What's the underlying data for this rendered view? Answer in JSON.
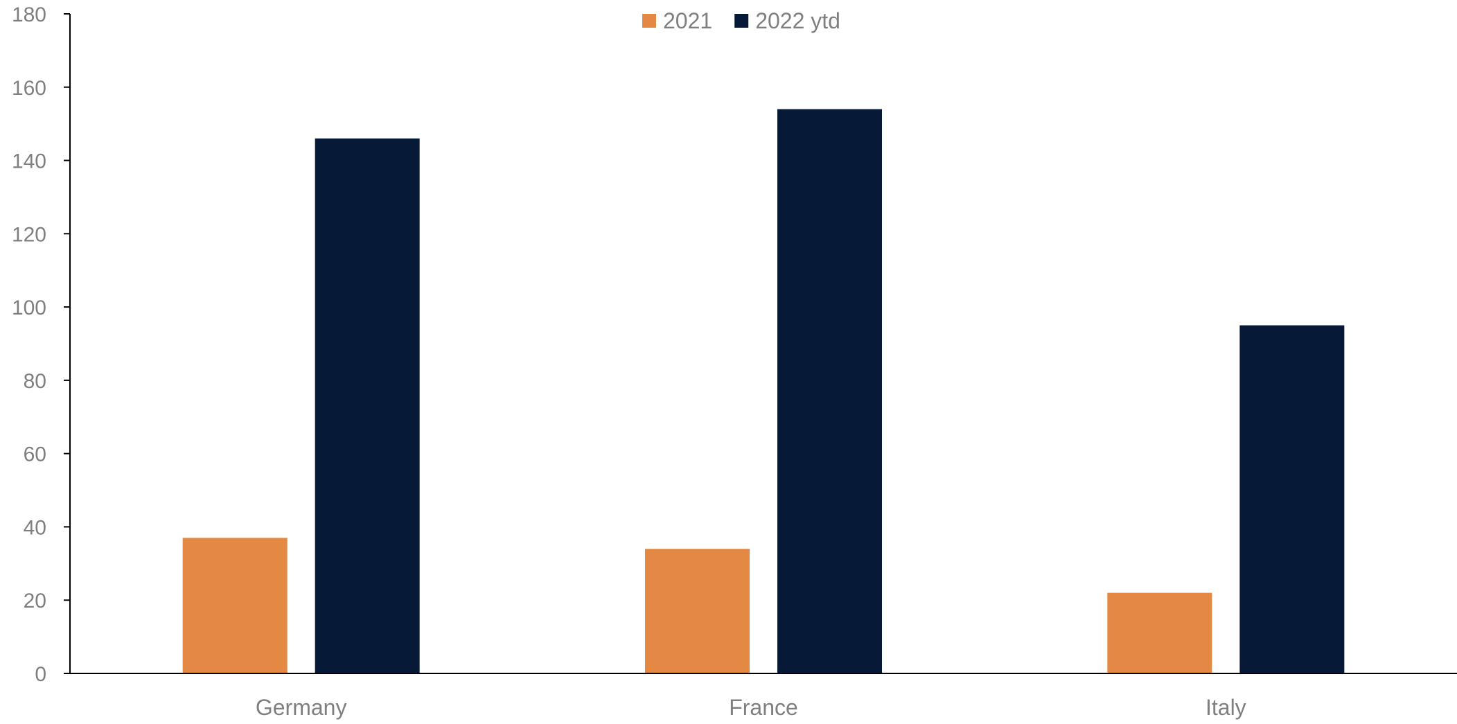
{
  "chart_data": {
    "type": "bar",
    "categories": [
      "Germany",
      "France",
      "Italy"
    ],
    "series": [
      {
        "name": "2021",
        "values": [
          37,
          34,
          22
        ],
        "color": "#e48944"
      },
      {
        "name": "2022 ytd",
        "values": [
          146,
          154,
          95
        ],
        "color": "#061a38"
      }
    ],
    "ylim": [
      0,
      180
    ],
    "yticks": [
      0,
      20,
      40,
      60,
      80,
      100,
      120,
      140,
      160,
      180
    ],
    "grid": false,
    "legend_position": "top-center",
    "axis_color": "#000000",
    "tick_label_color": "#7f7f7f"
  }
}
